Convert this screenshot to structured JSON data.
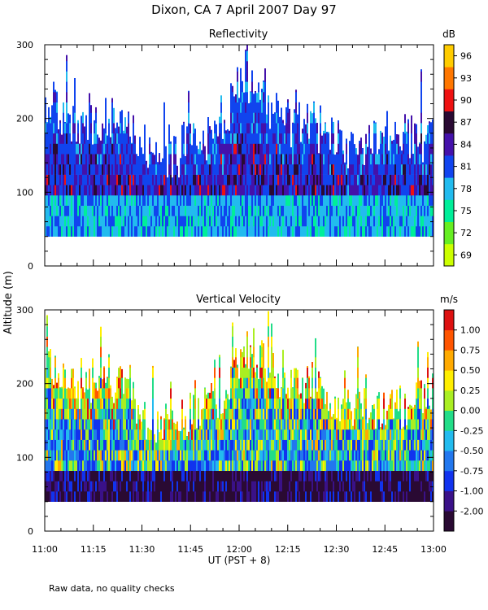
{
  "figure": {
    "title": "Dixon, CA   7 April 2007   Day  97",
    "xlabel": "UT   (PST + 8)",
    "ylabel": "Altitude (m)",
    "note": "Raw data, no quality checks"
  },
  "chart_data": [
    {
      "type": "heatmap",
      "title": "Reflectivity",
      "colorbar_unit": "dB",
      "colorbar_ticks": [
        "69",
        "72",
        "75",
        "78",
        "81",
        "84",
        "87",
        "90",
        "93",
        "96"
      ],
      "colorbar_colors": [
        "#ccff00",
        "#66ee22",
        "#00ee99",
        "#22bbee",
        "#1144ee",
        "#4411aa",
        "#2a0a33",
        "#ee1111",
        "#ff7700",
        "#ffcc00"
      ],
      "x_ticks": [
        "11:00",
        "11:15",
        "11:30",
        "11:45",
        "12:00",
        "12:15",
        "12:30",
        "12:45",
        "13:00"
      ],
      "x_range_minutes": [
        0,
        120
      ],
      "y_ticks": [
        "0",
        "100",
        "200",
        "300"
      ],
      "ylim": [
        0,
        300
      ],
      "data_floor_m": 40,
      "echo_tops_m": [
        {
          "time_min": 0,
          "top_m": 240
        },
        {
          "time_min": 10,
          "top_m": 210
        },
        {
          "time_min": 25,
          "top_m": 215
        },
        {
          "time_min": 32,
          "top_m": 160
        },
        {
          "time_min": 40,
          "top_m": 170
        },
        {
          "time_min": 55,
          "top_m": 200
        },
        {
          "time_min": 62,
          "top_m": 270
        },
        {
          "time_min": 75,
          "top_m": 220
        },
        {
          "time_min": 90,
          "top_m": 185
        },
        {
          "time_min": 110,
          "top_m": 185
        },
        {
          "time_min": 120,
          "top_m": 200
        }
      ]
    },
    {
      "type": "heatmap",
      "title": "Vertical Velocity",
      "colorbar_unit": "m/s",
      "colorbar_ticks": [
        "-2.00",
        "-1.00",
        "-0.75",
        "-0.50",
        "-0.25",
        "0.00",
        "0.25",
        "0.50",
        "0.75",
        "1.00"
      ],
      "colorbar_colors": [
        "#2a0a33",
        "#3a1188",
        "#1133ee",
        "#2277ee",
        "#22bbee",
        "#22dd88",
        "#aaee22",
        "#ffee00",
        "#ffaa00",
        "#ff5500",
        "#dd1111"
      ],
      "x_ticks": [
        "11:00",
        "11:15",
        "11:30",
        "11:45",
        "12:00",
        "12:15",
        "12:30",
        "12:45",
        "13:00"
      ],
      "x_range_minutes": [
        0,
        120
      ],
      "y_ticks": [
        "0",
        "100",
        "200",
        "300"
      ],
      "ylim": [
        0,
        300
      ],
      "data_floor_m": 40
    }
  ]
}
